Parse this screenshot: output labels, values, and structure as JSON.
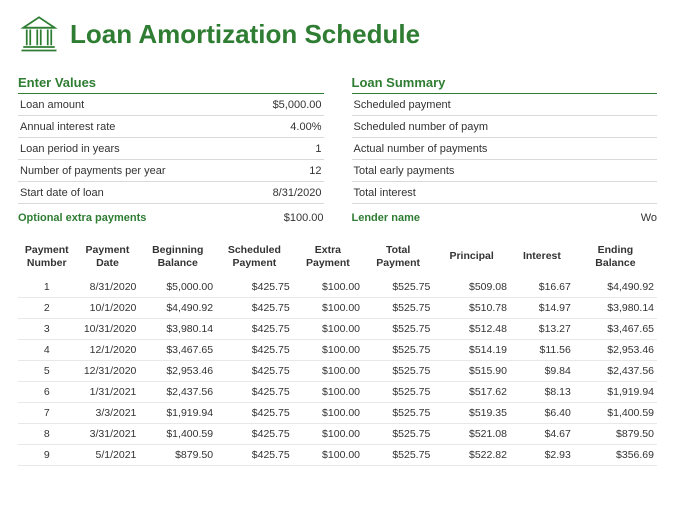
{
  "title": "Loan Amortization Schedule",
  "colors": {
    "accent": "#2e7d32",
    "border_light": "#d9d9d9",
    "row_border": "#e8e8e8",
    "background": "#ffffff",
    "text": "#333333"
  },
  "enter_values": {
    "title": "Enter Values",
    "rows": [
      {
        "label": "Loan amount",
        "value": "$5,000.00"
      },
      {
        "label": "Annual interest rate",
        "value": "4.00%"
      },
      {
        "label": "Loan period in years",
        "value": "1"
      },
      {
        "label": "Number of payments per year",
        "value": "12"
      },
      {
        "label": "Start date of loan",
        "value": "8/31/2020"
      }
    ],
    "extra": {
      "label": "Optional extra payments",
      "value": "$100.00"
    }
  },
  "loan_summary": {
    "title": "Loan Summary",
    "rows": [
      {
        "label": "Scheduled payment",
        "value": ""
      },
      {
        "label": "Scheduled number of paym",
        "value": ""
      },
      {
        "label": "Actual number of payments",
        "value": ""
      },
      {
        "label": "Total early payments",
        "value": ""
      },
      {
        "label": "Total interest",
        "value": ""
      }
    ],
    "lender": {
      "label": "Lender name",
      "value": "Wo"
    }
  },
  "schedule": {
    "headers": [
      "Payment Number",
      "Payment Date",
      "Beginning Balance",
      "Scheduled Payment",
      "Extra Payment",
      "Total Payment",
      "Principal",
      "Interest",
      "Ending Balance"
    ],
    "col_widths": [
      "9%",
      "10%",
      "12%",
      "12%",
      "11%",
      "11%",
      "12%",
      "10%",
      "13%"
    ],
    "rows": [
      [
        "1",
        "8/31/2020",
        "$5,000.00",
        "$425.75",
        "$100.00",
        "$525.75",
        "$509.08",
        "$16.67",
        "$4,490.92"
      ],
      [
        "2",
        "10/1/2020",
        "$4,490.92",
        "$425.75",
        "$100.00",
        "$525.75",
        "$510.78",
        "$14.97",
        "$3,980.14"
      ],
      [
        "3",
        "10/31/2020",
        "$3,980.14",
        "$425.75",
        "$100.00",
        "$525.75",
        "$512.48",
        "$13.27",
        "$3,467.65"
      ],
      [
        "4",
        "12/1/2020",
        "$3,467.65",
        "$425.75",
        "$100.00",
        "$525.75",
        "$514.19",
        "$11.56",
        "$2,953.46"
      ],
      [
        "5",
        "12/31/2020",
        "$2,953.46",
        "$425.75",
        "$100.00",
        "$525.75",
        "$515.90",
        "$9.84",
        "$2,437.56"
      ],
      [
        "6",
        "1/31/2021",
        "$2,437.56",
        "$425.75",
        "$100.00",
        "$525.75",
        "$517.62",
        "$8.13",
        "$1,919.94"
      ],
      [
        "7",
        "3/3/2021",
        "$1,919.94",
        "$425.75",
        "$100.00",
        "$525.75",
        "$519.35",
        "$6.40",
        "$1,400.59"
      ],
      [
        "8",
        "3/31/2021",
        "$1,400.59",
        "$425.75",
        "$100.00",
        "$525.75",
        "$521.08",
        "$4.67",
        "$879.50"
      ],
      [
        "9",
        "5/1/2021",
        "$879.50",
        "$425.75",
        "$100.00",
        "$525.75",
        "$522.82",
        "$2.93",
        "$356.69"
      ]
    ]
  }
}
